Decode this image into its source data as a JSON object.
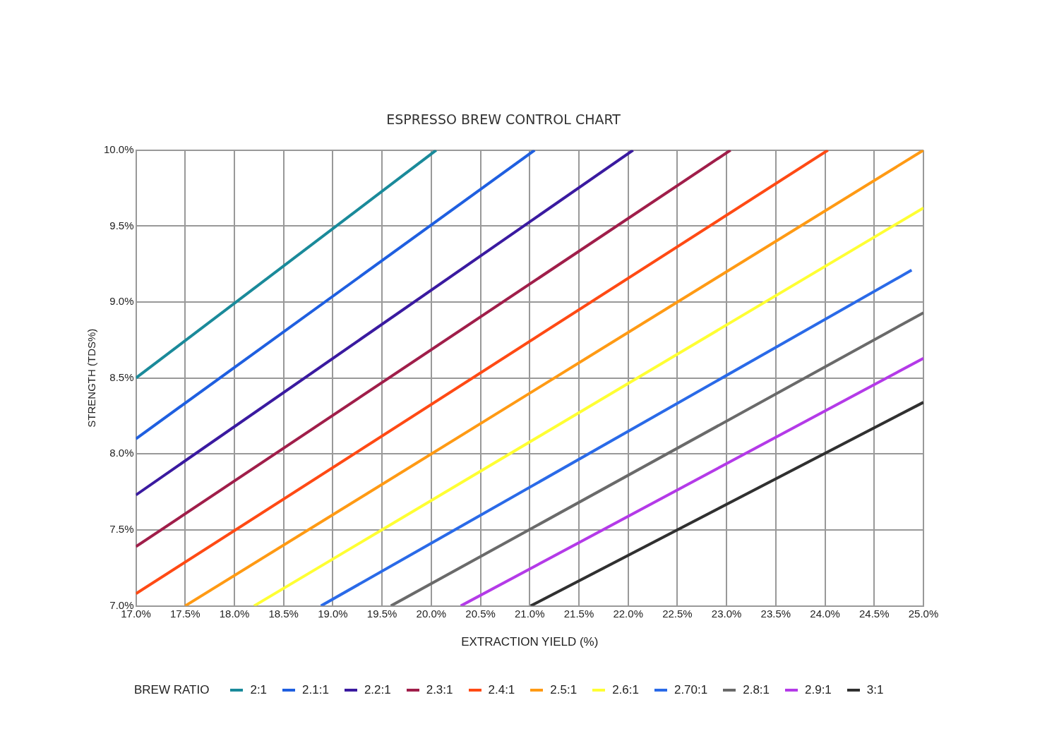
{
  "chart_data": {
    "type": "line",
    "title": "ESPRESSO BREW CONTROL CHART",
    "xlabel": "EXTRACTION YIELD (%)",
    "ylabel": "STRENGTH (TDS%)",
    "legend_title": "BREW RATIO",
    "legend": "bottom",
    "grid": true,
    "marker": "none",
    "line_style": "solid",
    "xlim": [
      17,
      25
    ],
    "ylim": [
      7,
      10
    ],
    "xticks": [
      {
        "value": 17,
        "label": "17.0%"
      },
      {
        "value": 17.5,
        "label": "17.5%"
      },
      {
        "value": 18,
        "label": "18.0%"
      },
      {
        "value": 18.5,
        "label": "18.5%"
      },
      {
        "value": 19,
        "label": "19.0%"
      },
      {
        "value": 19.5,
        "label": "19.5%"
      },
      {
        "value": 20,
        "label": "20.0%"
      },
      {
        "value": 20.5,
        "label": "20.5%"
      },
      {
        "value": 21,
        "label": "21.0%"
      },
      {
        "value": 21.5,
        "label": "21.5%"
      },
      {
        "value": 22,
        "label": "22.0%"
      },
      {
        "value": 22.5,
        "label": "22.5%"
      },
      {
        "value": 23,
        "label": "23.0%"
      },
      {
        "value": 23.5,
        "label": "23.5%"
      },
      {
        "value": 24,
        "label": "24.0%"
      },
      {
        "value": 24.5,
        "label": "24.5%"
      },
      {
        "value": 25,
        "label": "25.0%"
      }
    ],
    "yticks": [
      {
        "value": 7,
        "label": "7.0%"
      },
      {
        "value": 7.5,
        "label": "7.5%"
      },
      {
        "value": 8,
        "label": "8.0%"
      },
      {
        "value": 8.5,
        "label": "8.5%"
      },
      {
        "value": 9,
        "label": "9.0%"
      },
      {
        "value": 9.5,
        "label": "9.5%"
      },
      {
        "value": 10,
        "label": "10.0%"
      }
    ],
    "series": [
      {
        "name": "2:1",
        "color": "#1a8a9a",
        "x": [
          17,
          20.05
        ],
        "values": [
          8.5,
          10
        ]
      },
      {
        "name": "2.1:1",
        "color": "#1f5fe0",
        "x": [
          17,
          21.05
        ],
        "values": [
          8.1,
          10
        ]
      },
      {
        "name": "2.2:1",
        "color": "#3a1aa0",
        "x": [
          17,
          22.05
        ],
        "values": [
          7.73,
          10
        ]
      },
      {
        "name": "2.3:1",
        "color": "#a01e4a",
        "x": [
          17,
          23.04
        ],
        "values": [
          7.39,
          10
        ]
      },
      {
        "name": "2.4:1",
        "color": "#ff4a14",
        "x": [
          17,
          24.03
        ],
        "values": [
          7.08,
          10
        ]
      },
      {
        "name": "2.5:1",
        "color": "#ff9a14",
        "x": [
          17.5,
          25
        ],
        "values": [
          7,
          10
        ]
      },
      {
        "name": "2.6:1",
        "color": "#ffff33",
        "x": [
          18.2,
          25
        ],
        "values": [
          7,
          9.62
        ]
      },
      {
        "name": "2.70:1",
        "color": "#2a6ae8",
        "x": [
          18.88,
          24.88
        ],
        "values": [
          7,
          9.21
        ]
      },
      {
        "name": "2.8:1",
        "color": "#6a6a6a",
        "x": [
          19.59,
          25
        ],
        "values": [
          7,
          8.93
        ]
      },
      {
        "name": "2.9:1",
        "color": "#b43ae8",
        "x": [
          20.3,
          25
        ],
        "values": [
          7,
          8.63
        ]
      },
      {
        "name": "3:1",
        "color": "#303030",
        "x": [
          21.01,
          25
        ],
        "values": [
          7,
          8.34
        ]
      }
    ]
  }
}
